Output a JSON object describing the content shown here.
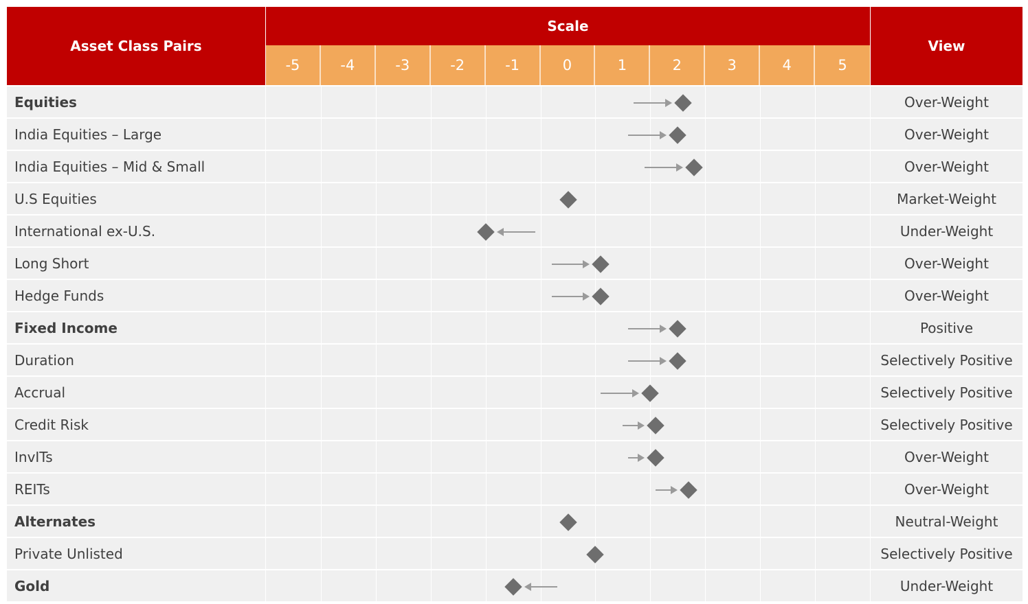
{
  "header": {
    "pairs_label": "Asset Class Pairs",
    "scale_label": "Scale",
    "view_label": "View",
    "scale_ticks": [
      "-5",
      "-4",
      "-3",
      "-2",
      "-1",
      "0",
      "1",
      "2",
      "3",
      "4",
      "5"
    ]
  },
  "colors": {
    "header_red": "#c00000",
    "scale_orange": "#f2a85a",
    "row_bg": "#f0f0f0",
    "marker": "#6e6e6e",
    "arrow": "#9a9a9a"
  },
  "chart_data": {
    "type": "table",
    "scale_range": [
      -5,
      5
    ],
    "rows": [
      {
        "label": "Equities",
        "bold": true,
        "value": 2.1,
        "from": 1.2,
        "view": "Over-Weight"
      },
      {
        "label": "India Equities – Large",
        "bold": false,
        "value": 2.0,
        "from": 1.1,
        "view": "Over-Weight"
      },
      {
        "label": "India Equities – Mid & Small",
        "bold": false,
        "value": 2.3,
        "from": 1.4,
        "view": "Over-Weight"
      },
      {
        "label": "U.S Equities",
        "bold": false,
        "value": 0.0,
        "from": null,
        "view": "Market-Weight"
      },
      {
        "label": "International ex-U.S.",
        "bold": false,
        "value": -1.5,
        "from": -0.6,
        "view": "Under-Weight"
      },
      {
        "label": "Long Short",
        "bold": false,
        "value": 0.6,
        "from": -0.3,
        "view": "Over-Weight"
      },
      {
        "label": "Hedge Funds",
        "bold": false,
        "value": 0.6,
        "from": -0.3,
        "view": "Over-Weight"
      },
      {
        "label": "Fixed Income",
        "bold": true,
        "value": 2.0,
        "from": 1.1,
        "view": "Positive"
      },
      {
        "label": "Duration",
        "bold": false,
        "value": 2.0,
        "from": 1.1,
        "view": "Selectively Positive"
      },
      {
        "label": "Accrual",
        "bold": false,
        "value": 1.5,
        "from": 0.6,
        "view": "Selectively Positive"
      },
      {
        "label": "Credit Risk",
        "bold": false,
        "value": 1.6,
        "from": 1.0,
        "view": "Selectively Positive"
      },
      {
        "label": "InvITs",
        "bold": false,
        "value": 1.6,
        "from": 1.1,
        "view": "Over-Weight"
      },
      {
        "label": "REITs",
        "bold": false,
        "value": 2.2,
        "from": 1.6,
        "view": "Over-Weight"
      },
      {
        "label": "Alternates",
        "bold": true,
        "value": 0.0,
        "from": null,
        "view": "Neutral-Weight"
      },
      {
        "label": "Private Unlisted",
        "bold": false,
        "value": 0.5,
        "from": null,
        "view": "Selectively Positive"
      },
      {
        "label": "Gold",
        "bold": true,
        "value": -1.0,
        "from": -0.2,
        "view": "Under-Weight"
      }
    ]
  }
}
